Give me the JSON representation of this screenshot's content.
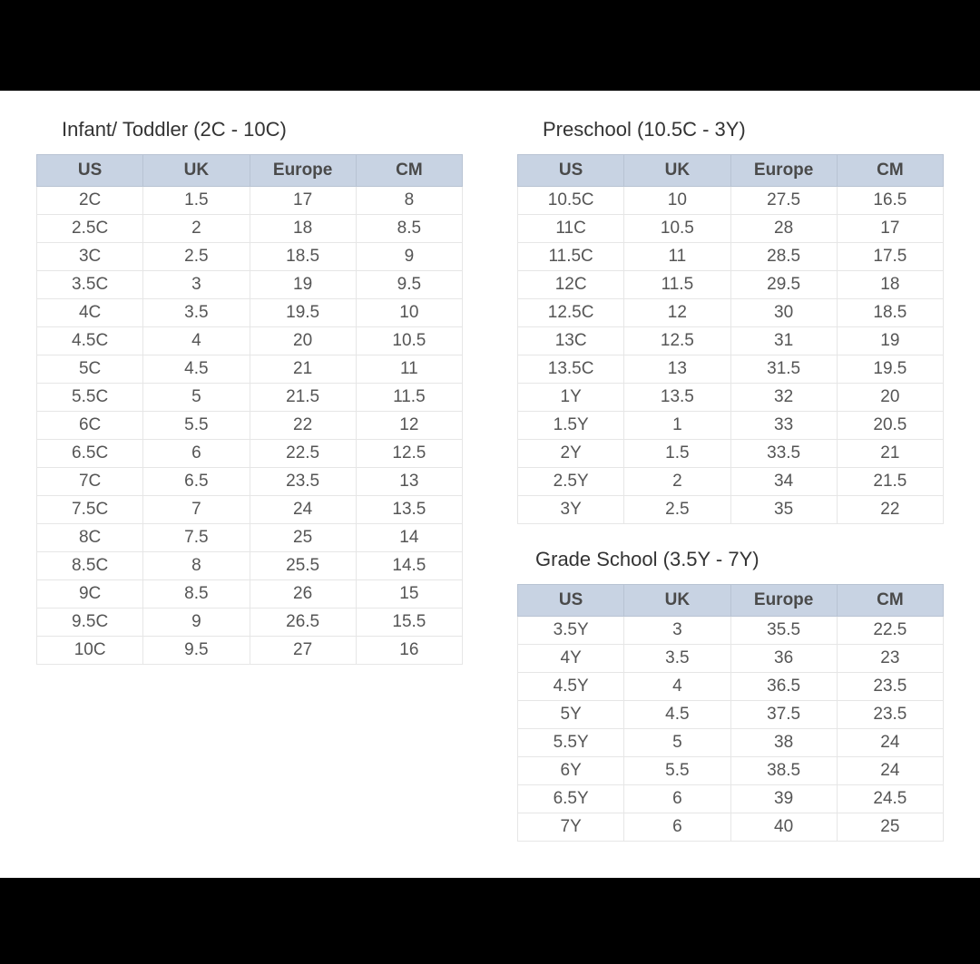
{
  "layout": {
    "top_band_height": 100,
    "bottom_band_height": 40
  },
  "colors": {
    "header_bg": "#c8d3e3",
    "header_border": "#b8c3d3",
    "cell_border": "#e6e6e6",
    "text": "#555555",
    "header_text": "#4a4a4a"
  },
  "tables": {
    "infant": {
      "title": "Infant/ Toddler (2C - 10C)",
      "columns": [
        "US",
        "UK",
        "Europe",
        "CM"
      ],
      "rows": [
        [
          "2C",
          "1.5",
          "17",
          "8"
        ],
        [
          "2.5C",
          "2",
          "18",
          "8.5"
        ],
        [
          "3C",
          "2.5",
          "18.5",
          "9"
        ],
        [
          "3.5C",
          "3",
          "19",
          "9.5"
        ],
        [
          "4C",
          "3.5",
          "19.5",
          "10"
        ],
        [
          "4.5C",
          "4",
          "20",
          "10.5"
        ],
        [
          "5C",
          "4.5",
          "21",
          "11"
        ],
        [
          "5.5C",
          "5",
          "21.5",
          "11.5"
        ],
        [
          "6C",
          "5.5",
          "22",
          "12"
        ],
        [
          "6.5C",
          "6",
          "22.5",
          "12.5"
        ],
        [
          "7C",
          "6.5",
          "23.5",
          "13"
        ],
        [
          "7.5C",
          "7",
          "24",
          "13.5"
        ],
        [
          "8C",
          "7.5",
          "25",
          "14"
        ],
        [
          "8.5C",
          "8",
          "25.5",
          "14.5"
        ],
        [
          "9C",
          "8.5",
          "26",
          "15"
        ],
        [
          "9.5C",
          "9",
          "26.5",
          "15.5"
        ],
        [
          "10C",
          "9.5",
          "27",
          "16"
        ]
      ]
    },
    "preschool": {
      "title": "Preschool (10.5C - 3Y)",
      "columns": [
        "US",
        "UK",
        "Europe",
        "CM"
      ],
      "rows": [
        [
          "10.5C",
          "10",
          "27.5",
          "16.5"
        ],
        [
          "11C",
          "10.5",
          "28",
          "17"
        ],
        [
          "11.5C",
          "11",
          "28.5",
          "17.5"
        ],
        [
          "12C",
          "11.5",
          "29.5",
          "18"
        ],
        [
          "12.5C",
          "12",
          "30",
          "18.5"
        ],
        [
          "13C",
          "12.5",
          "31",
          "19"
        ],
        [
          "13.5C",
          "13",
          "31.5",
          "19.5"
        ],
        [
          "1Y",
          "13.5",
          "32",
          "20"
        ],
        [
          "1.5Y",
          "1",
          "33",
          "20.5"
        ],
        [
          "2Y",
          "1.5",
          "33.5",
          "21"
        ],
        [
          "2.5Y",
          "2",
          "34",
          "21.5"
        ],
        [
          "3Y",
          "2.5",
          "35",
          "22"
        ]
      ]
    },
    "grade": {
      "title": "Grade School (3.5Y - 7Y)",
      "columns": [
        "US",
        "UK",
        "Europe",
        "CM"
      ],
      "rows": [
        [
          "3.5Y",
          "3",
          "35.5",
          "22.5"
        ],
        [
          "4Y",
          "3.5",
          "36",
          "23"
        ],
        [
          "4.5Y",
          "4",
          "36.5",
          "23.5"
        ],
        [
          "5Y",
          "4.5",
          "37.5",
          "23.5"
        ],
        [
          "5.5Y",
          "5",
          "38",
          "24"
        ],
        [
          "6Y",
          "5.5",
          "38.5",
          "24"
        ],
        [
          "6.5Y",
          "6",
          "39",
          "24.5"
        ],
        [
          "7Y",
          "6",
          "40",
          "25"
        ]
      ]
    }
  }
}
